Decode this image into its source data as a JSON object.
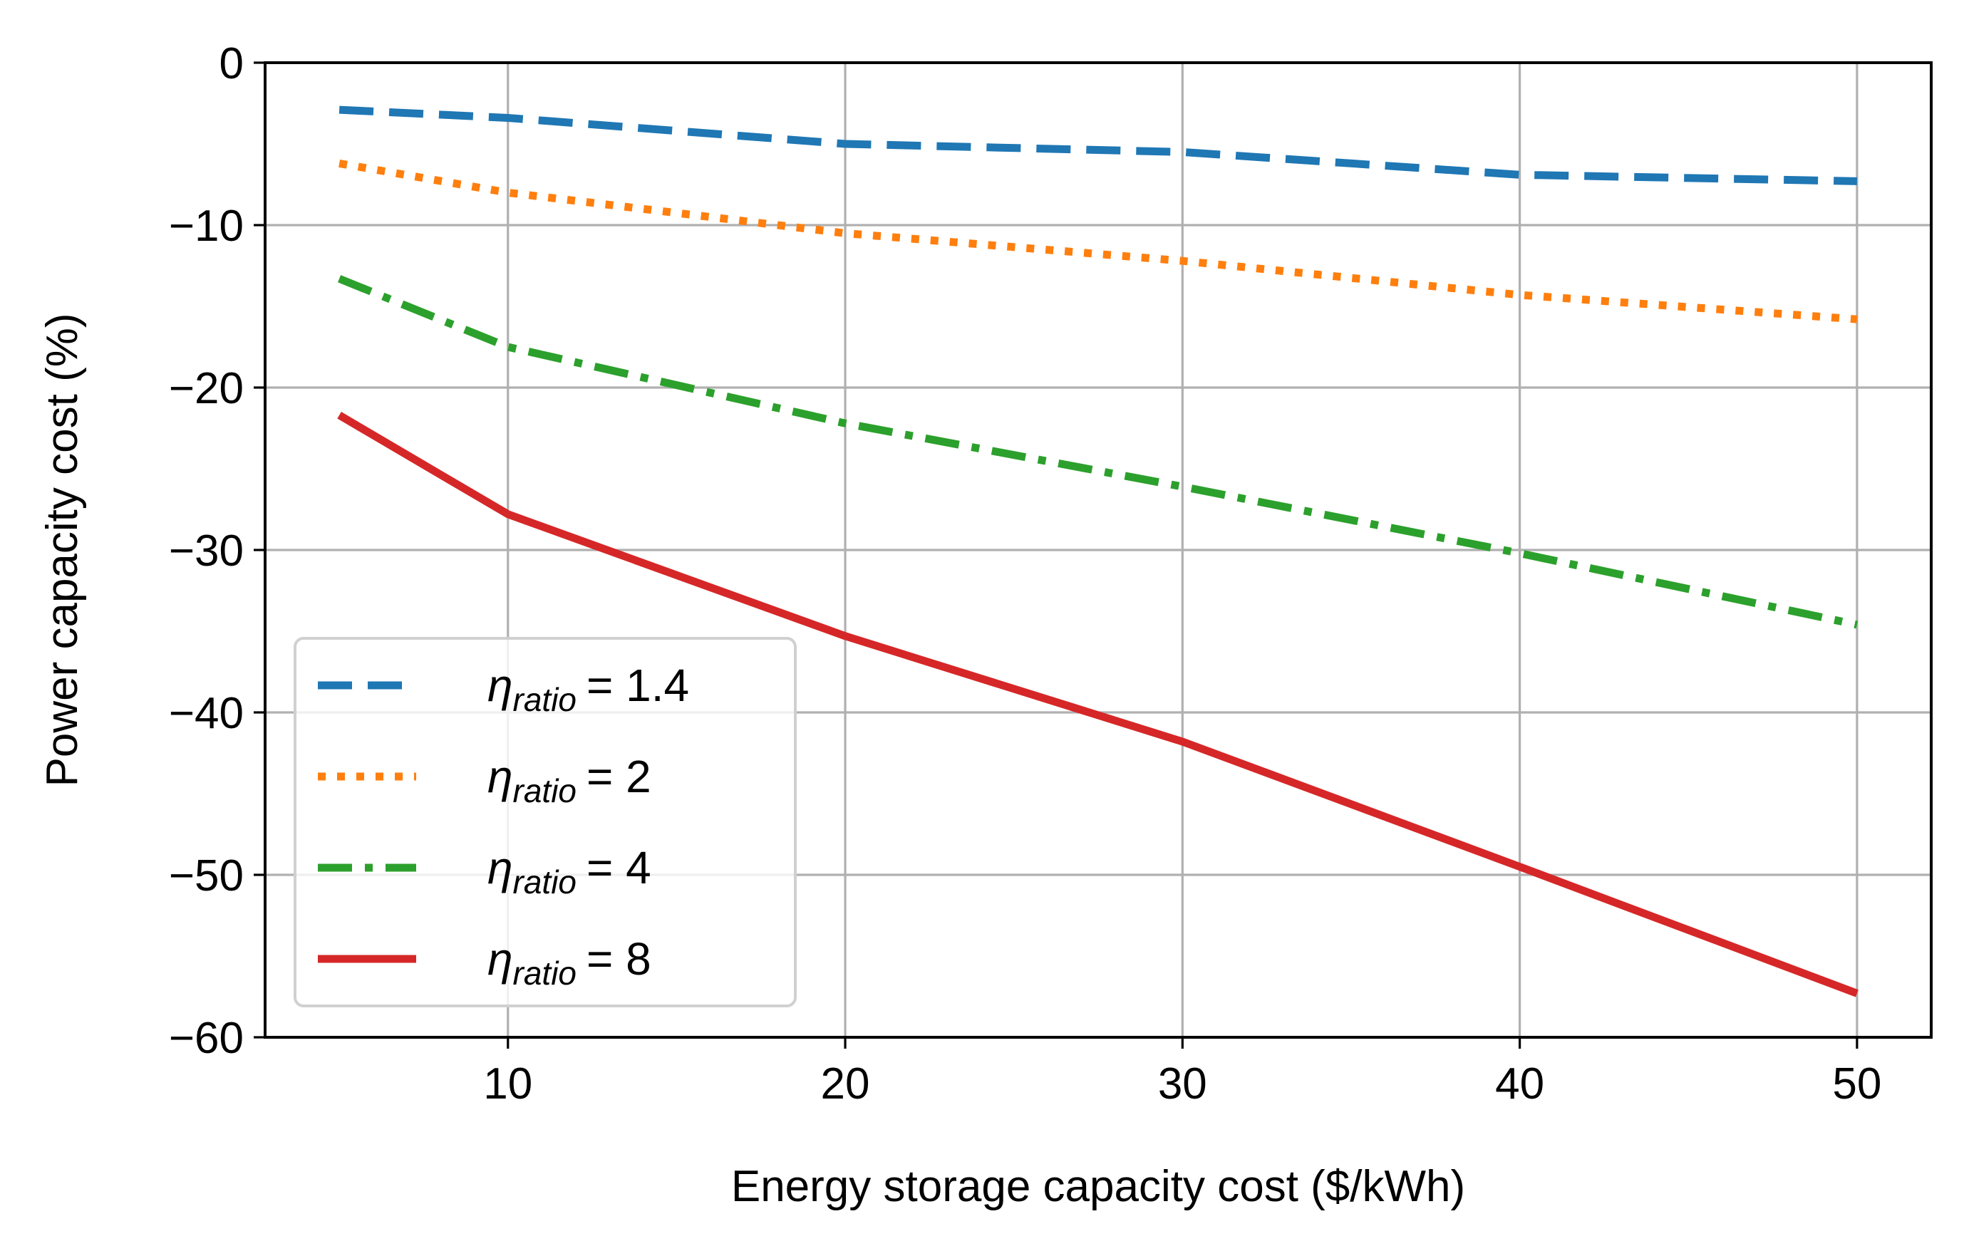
{
  "chart_data": {
    "type": "line",
    "xlabel": "Energy storage capacity cost ($/kWh)",
    "ylabel": "Power capacity cost (%)",
    "xlim": [
      2.8,
      52.2
    ],
    "ylim": [
      -60,
      0
    ],
    "xticks": [
      10,
      20,
      30,
      40,
      50
    ],
    "xtick_labels": [
      "10",
      "20",
      "30",
      "40",
      "50"
    ],
    "yticks": [
      0,
      -10,
      -20,
      -30,
      -40,
      -50,
      -60
    ],
    "ytick_labels": [
      "0",
      "−10",
      "−20",
      "−30",
      "−40",
      "−50",
      "−60"
    ],
    "grid": true,
    "legend_position": "lower-left",
    "x": [
      5,
      10,
      20,
      30,
      40,
      50
    ],
    "series": [
      {
        "name": "η_ratio = 1.4",
        "legend_symbol": "η",
        "legend_subscript": "ratio",
        "legend_value": "= 1.4",
        "color": "#1f77b4",
        "style": "dashed",
        "values": [
          -2.9,
          -3.4,
          -5.0,
          -5.5,
          -6.9,
          -7.3
        ]
      },
      {
        "name": "η_ratio = 2",
        "legend_symbol": "η",
        "legend_subscript": "ratio",
        "legend_value": "= 2",
        "color": "#ff7f0e",
        "style": "dotted",
        "values": [
          -6.2,
          -8.0,
          -10.5,
          -12.2,
          -14.3,
          -15.8
        ]
      },
      {
        "name": "η_ratio = 4",
        "legend_symbol": "η",
        "legend_subscript": "ratio",
        "legend_value": "= 4",
        "color": "#2ca02c",
        "style": "dashdot",
        "values": [
          -13.3,
          -17.5,
          -22.2,
          -26.1,
          -30.2,
          -34.6
        ]
      },
      {
        "name": "η_ratio = 8",
        "legend_symbol": "η",
        "legend_subscript": "ratio",
        "legend_value": "= 8",
        "color": "#d62728",
        "style": "solid",
        "values": [
          -21.7,
          -27.8,
          -35.3,
          -41.8,
          -49.5,
          -57.3
        ]
      }
    ]
  }
}
